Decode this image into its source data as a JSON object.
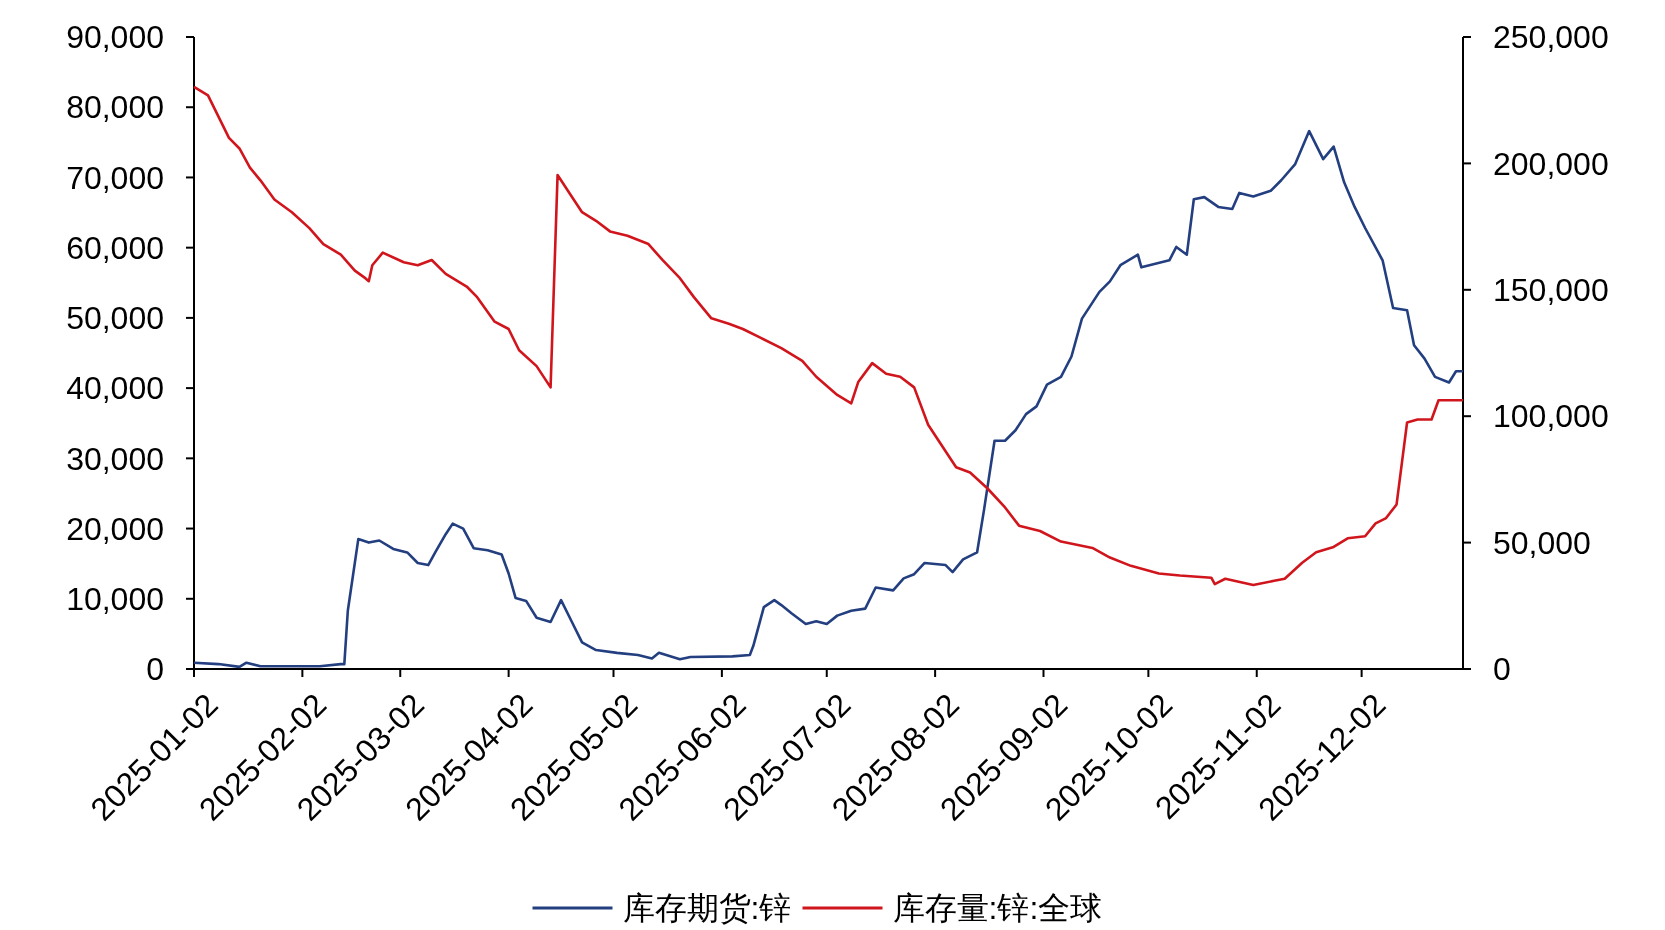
{
  "chart_data": {
    "type": "line",
    "legend": "bottom",
    "grid": false,
    "xlim": [
      "2025-01-02",
      "2025-12-31"
    ],
    "xticks": [
      "2025-01-02",
      "2025-02-02",
      "2025-03-02",
      "2025-04-02",
      "2025-05-02",
      "2025-06-02",
      "2025-07-02",
      "2025-08-02",
      "2025-09-02",
      "2025-10-02",
      "2025-11-02",
      "2025-12-02"
    ],
    "ylim": [
      0,
      90000
    ],
    "yticks": [
      {
        "value": 0,
        "label": "0"
      },
      {
        "value": 10000,
        "label": "10,000"
      },
      {
        "value": 20000,
        "label": "20,000"
      },
      {
        "value": 30000,
        "label": "30,000"
      },
      {
        "value": 40000,
        "label": "40,000"
      },
      {
        "value": 50000,
        "label": "50,000"
      },
      {
        "value": 60000,
        "label": "60,000"
      },
      {
        "value": 70000,
        "label": "70,000"
      },
      {
        "value": 80000,
        "label": "80,000"
      },
      {
        "value": 90000,
        "label": "90,000"
      }
    ],
    "y2lim": [
      0,
      250000
    ],
    "y2ticks": [
      {
        "value": 0,
        "label": "0"
      },
      {
        "value": 50000,
        "label": "50,000"
      },
      {
        "value": 100000,
        "label": "100,000"
      },
      {
        "value": 150000,
        "label": "150,000"
      },
      {
        "value": 200000,
        "label": "200,000"
      },
      {
        "value": 250000,
        "label": "250,000"
      }
    ],
    "series": [
      {
        "name": "库存期货:锌",
        "color": "#233f80",
        "x": [
          "2025-01-02",
          "2025-01-09",
          "2025-01-15",
          "2025-01-17",
          "2025-01-21",
          "2025-02-07",
          "2025-02-13",
          "2025-02-14",
          "2025-02-15",
          "2025-02-18",
          "2025-02-21",
          "2025-02-24",
          "2025-02-28",
          "2025-03-04",
          "2025-03-07",
          "2025-03-10",
          "2025-03-12",
          "2025-03-15",
          "2025-03-17",
          "2025-03-20",
          "2025-03-23",
          "2025-03-27",
          "2025-03-31",
          "2025-04-02",
          "2025-04-04",
          "2025-04-07",
          "2025-04-10",
          "2025-04-14",
          "2025-04-17",
          "2025-04-20",
          "2025-04-23",
          "2025-04-27",
          "2025-05-03",
          "2025-05-09",
          "2025-05-13",
          "2025-05-15",
          "2025-05-21",
          "2025-05-24",
          "2025-06-05",
          "2025-06-10",
          "2025-06-11",
          "2025-06-14",
          "2025-06-17",
          "2025-06-19",
          "2025-06-22",
          "2025-06-26",
          "2025-06-29",
          "2025-07-02",
          "2025-07-05",
          "2025-07-09",
          "2025-07-13",
          "2025-07-16",
          "2025-07-21",
          "2025-07-24",
          "2025-07-27",
          "2025-07-30",
          "2025-08-05",
          "2025-08-07",
          "2025-08-10",
          "2025-08-14",
          "2025-08-16",
          "2025-08-19",
          "2025-08-22",
          "2025-08-25",
          "2025-08-28",
          "2025-08-31",
          "2025-09-03",
          "2025-09-07",
          "2025-09-10",
          "2025-09-13",
          "2025-09-18",
          "2025-09-21",
          "2025-09-24",
          "2025-09-29",
          "2025-09-30",
          "2025-10-08",
          "2025-10-10",
          "2025-10-13",
          "2025-10-15",
          "2025-10-18",
          "2025-10-22",
          "2025-10-26",
          "2025-10-28",
          "2025-11-01",
          "2025-11-06",
          "2025-11-09",
          "2025-11-13",
          "2025-11-17",
          "2025-11-21",
          "2025-11-24",
          "2025-11-27",
          "2025-11-30",
          "2025-12-03",
          "2025-12-08",
          "2025-12-11",
          "2025-12-15",
          "2025-12-17",
          "2025-12-20",
          "2025-12-23",
          "2025-12-27",
          "2025-12-29",
          "2025-12-31"
        ],
        "values": [
          900,
          700,
          300,
          900,
          400,
          400,
          700,
          700,
          8300,
          18500,
          18000,
          18300,
          17100,
          16600,
          15100,
          14800,
          16600,
          19200,
          20700,
          20000,
          17200,
          16900,
          16300,
          13600,
          10100,
          9700,
          7300,
          6700,
          9800,
          6800,
          3800,
          2700,
          2300,
          2000,
          1500,
          2300,
          1400,
          1700,
          1800,
          2000,
          3300,
          8800,
          9800,
          9100,
          7900,
          6400,
          6800,
          6400,
          7600,
          8300,
          8600,
          11600,
          11200,
          12900,
          13500,
          15100,
          14800,
          13800,
          15600,
          16600,
          22700,
          32500,
          32500,
          34000,
          36300,
          37400,
          40500,
          41600,
          44500,
          49900,
          53700,
          55200,
          57500,
          59000,
          57200,
          58200,
          60100,
          59000,
          66900,
          67200,
          65800,
          65500,
          67800,
          67300,
          68100,
          69600,
          71900,
          76600,
          72600,
          74400,
          69300,
          65800,
          62800,
          58200,
          51400,
          51100,
          46100,
          44200,
          41600,
          40800,
          42400,
          42400
        ]
      },
      {
        "name": "库存量:锌:全球",
        "color": "#d0161c",
        "axis": "y2",
        "x": [
          "2025-01-02",
          "2025-01-06",
          "2025-01-09",
          "2025-01-12",
          "2025-01-15",
          "2025-01-18",
          "2025-01-21",
          "2025-01-25",
          "2025-01-30",
          "2025-02-04",
          "2025-02-08",
          "2025-02-13",
          "2025-02-17",
          "2025-02-20",
          "2025-02-21",
          "2025-02-22",
          "2025-02-25",
          "2025-03-03",
          "2025-03-07",
          "2025-03-11",
          "2025-03-15",
          "2025-03-21",
          "2025-03-24",
          "2025-03-29",
          "2025-04-02",
          "2025-04-05",
          "2025-04-10",
          "2025-04-14",
          "2025-04-16",
          "2025-04-19",
          "2025-04-23",
          "2025-04-27",
          "2025-05-01",
          "2025-05-06",
          "2025-05-12",
          "2025-05-16",
          "2025-05-21",
          "2025-05-25",
          "2025-05-30",
          "2025-06-04",
          "2025-06-08",
          "2025-06-13",
          "2025-06-19",
          "2025-06-25",
          "2025-06-29",
          "2025-07-05",
          "2025-07-09",
          "2025-07-11",
          "2025-07-15",
          "2025-07-19",
          "2025-07-23",
          "2025-07-27",
          "2025-07-31",
          "2025-08-04",
          "2025-08-08",
          "2025-08-12",
          "2025-08-17",
          "2025-08-22",
          "2025-08-26",
          "2025-09-01",
          "2025-09-07",
          "2025-09-16",
          "2025-09-21",
          "2025-09-27",
          "2025-10-05",
          "2025-10-11",
          "2025-10-20",
          "2025-10-21",
          "2025-10-24",
          "2025-11-01",
          "2025-11-07",
          "2025-11-10",
          "2025-11-15",
          "2025-11-19",
          "2025-11-24",
          "2025-11-28",
          "2025-12-03",
          "2025-12-06",
          "2025-12-09",
          "2025-12-12",
          "2025-12-15",
          "2025-12-18",
          "2025-12-22",
          "2025-12-24",
          "2025-12-31"
        ],
        "values": [
          230300,
          226900,
          218500,
          210100,
          205900,
          198300,
          193300,
          185700,
          180700,
          174400,
          168100,
          163900,
          157600,
          154600,
          153400,
          159700,
          164700,
          160900,
          159700,
          161800,
          156300,
          151300,
          147100,
          137400,
          134500,
          126100,
          119800,
          111400,
          195400,
          189100,
          180700,
          177300,
          173100,
          171400,
          168100,
          161800,
          154600,
          147100,
          138700,
          136600,
          134500,
          131100,
          126900,
          121900,
          115600,
          108400,
          105100,
          113500,
          121000,
          116800,
          115600,
          111400,
          96600,
          88200,
          79800,
          77700,
          71400,
          63900,
          56700,
          54600,
          50400,
          47900,
          44100,
          40800,
          37800,
          37000,
          36100,
          33600,
          35700,
          33200,
          34900,
          35700,
          42000,
          46200,
          48300,
          51700,
          52500,
          57600,
          59700,
          65100,
          97500,
          98700,
          98700,
          106300,
          106300
        ]
      }
    ]
  }
}
